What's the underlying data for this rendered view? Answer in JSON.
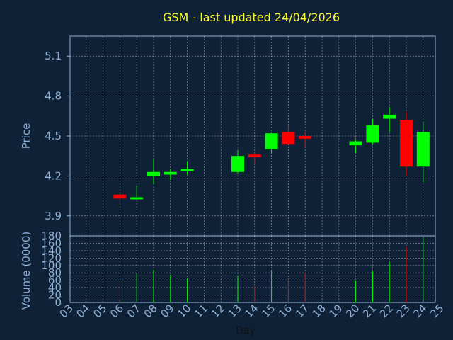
{
  "chart_data": [
    {
      "type": "candlestick",
      "title": "GSM - last updated 24/04/2026",
      "ylabel": "Price",
      "ylim": [
        3.75,
        5.25
      ],
      "yticks": [
        "3.9",
        "4.2",
        "4.5",
        "4.8",
        "5.1"
      ],
      "grid": true,
      "up_color": "#00ff00",
      "down_color": "#ff0000",
      "candles": [
        {
          "day": "06",
          "open": 4.06,
          "high": 4.08,
          "low": 3.98,
          "close": 4.03
        },
        {
          "day": "07",
          "open": 4.03,
          "high": 4.13,
          "low": 4.02,
          "close": 4.04
        },
        {
          "day": "08",
          "open": 4.2,
          "high": 4.33,
          "low": 4.14,
          "close": 4.23
        },
        {
          "day": "09",
          "open": 4.21,
          "high": 4.25,
          "low": 4.17,
          "close": 4.23
        },
        {
          "day": "10",
          "open": 4.24,
          "high": 4.31,
          "low": 4.21,
          "close": 4.25
        },
        {
          "day": "13",
          "open": 4.23,
          "high": 4.39,
          "low": 4.22,
          "close": 4.35
        },
        {
          "day": "14",
          "open": 4.36,
          "high": 4.38,
          "low": 4.29,
          "close": 4.34
        },
        {
          "day": "15",
          "open": 4.4,
          "high": 4.52,
          "low": 4.37,
          "close": 4.52
        },
        {
          "day": "16",
          "open": 4.53,
          "high": 4.58,
          "low": 4.45,
          "close": 4.44
        },
        {
          "day": "17",
          "open": 4.5,
          "high": 4.53,
          "low": 4.41,
          "close": 4.48
        },
        {
          "day": "20",
          "open": 4.43,
          "high": 4.47,
          "low": 4.37,
          "close": 4.46
        },
        {
          "day": "21",
          "open": 4.45,
          "high": 4.63,
          "low": 4.44,
          "close": 4.58
        },
        {
          "day": "22",
          "open": 4.63,
          "high": 4.72,
          "low": 4.53,
          "close": 4.66
        },
        {
          "day": "23",
          "open": 4.62,
          "high": 4.68,
          "low": 4.2,
          "close": 4.27
        },
        {
          "day": "24",
          "open": 4.27,
          "high": 4.61,
          "low": 4.15,
          "close": 4.53
        }
      ]
    },
    {
      "type": "bar",
      "xlabel": "Day",
      "ylabel": "Volume (0000)",
      "ylim": [
        0,
        180
      ],
      "yticks": [
        "0",
        "20",
        "40",
        "60",
        "80",
        "100",
        "120",
        "140",
        "160",
        "180"
      ],
      "categories": [
        "03",
        "04",
        "05",
        "06",
        "07",
        "08",
        "09",
        "10",
        "11",
        "12",
        "13",
        "14",
        "15",
        "16",
        "17",
        "18",
        "19",
        "20",
        "21",
        "22",
        "23",
        "24",
        "25"
      ],
      "bars": [
        {
          "day": "06",
          "value": 60,
          "color": "#ff0000"
        },
        {
          "day": "07",
          "value": 80,
          "color": "#00ff00"
        },
        {
          "day": "08",
          "value": 88,
          "color": "#00ff00"
        },
        {
          "day": "09",
          "value": 75,
          "color": "#00ff00"
        },
        {
          "day": "10",
          "value": 65,
          "color": "#00ff00"
        },
        {
          "day": "13",
          "value": 72,
          "color": "#00ff00"
        },
        {
          "day": "14",
          "value": 45,
          "color": "#ff0000"
        },
        {
          "day": "15",
          "value": 88,
          "color": "#00ff00"
        },
        {
          "day": "16",
          "value": 65,
          "color": "#ff0000"
        },
        {
          "day": "17",
          "value": 80,
          "color": "#ff0000"
        },
        {
          "day": "20",
          "value": 58,
          "color": "#00ff00"
        },
        {
          "day": "21",
          "value": 85,
          "color": "#00ff00"
        },
        {
          "day": "22",
          "value": 110,
          "color": "#00ff00"
        },
        {
          "day": "23",
          "value": 150,
          "color": "#ff0000"
        },
        {
          "day": "24",
          "value": 180,
          "color": "#00ff00"
        }
      ]
    }
  ]
}
